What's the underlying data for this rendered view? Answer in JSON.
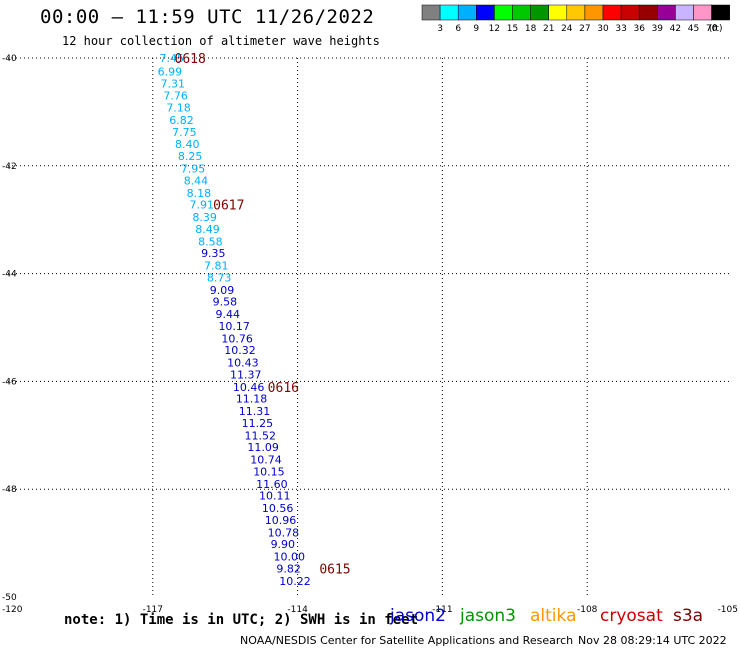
{
  "header": {
    "title": "00:00 — 11:59 UTC 11/26/2022",
    "subtitle": "12 hour collection of altimeter wave heights"
  },
  "colorbar": {
    "colors": [
      "#808080",
      "#00ffff",
      "#00b0ff",
      "#0000ff",
      "#00ff00",
      "#00c800",
      "#009600",
      "#ffff00",
      "#ffc800",
      "#ff9600",
      "#ff0000",
      "#c80000",
      "#960000",
      "#960096",
      "#c8b4ff",
      "#ff96c8",
      "#000000"
    ],
    "labels": [
      "3",
      "6",
      "9",
      "12",
      "15",
      "18",
      "21",
      "24",
      "27",
      "30",
      "33",
      "36",
      "39",
      "42",
      "45",
      "70",
      "(ft)"
    ]
  },
  "axes": {
    "y_ticks": [
      "-40",
      "-42",
      "-44",
      "-46",
      "-48",
      "-50"
    ],
    "x_ticks": [
      "-120",
      "-117",
      "-114",
      "-111",
      "-108",
      "-105"
    ],
    "lat_range": [
      -50,
      -40
    ],
    "lon_range": [
      -120,
      -105
    ]
  },
  "track": {
    "points": [
      {
        "v": "7.45",
        "lon": -116.86,
        "lat": -40.0,
        "c": "#00b0ff"
      },
      {
        "v": "6.99",
        "lon": -116.9,
        "lat": -40.25,
        "c": "#00b0ff"
      },
      {
        "v": "7.31",
        "lon": -116.84,
        "lat": -40.47,
        "c": "#00b0ff"
      },
      {
        "v": "7.76",
        "lon": -116.78,
        "lat": -40.7,
        "c": "#00b0ff"
      },
      {
        "v": "7.18",
        "lon": -116.72,
        "lat": -40.92,
        "c": "#00b0ff"
      },
      {
        "v": "6.82",
        "lon": -116.66,
        "lat": -41.15,
        "c": "#00b0ff"
      },
      {
        "v": "7.75",
        "lon": -116.6,
        "lat": -41.37,
        "c": "#00b0ff"
      },
      {
        "v": "8.40",
        "lon": -116.54,
        "lat": -41.6,
        "c": "#00b0ff"
      },
      {
        "v": "8.25",
        "lon": -116.48,
        "lat": -41.82,
        "c": "#00b0ff"
      },
      {
        "v": "7.95",
        "lon": -116.42,
        "lat": -42.05,
        "c": "#00b0ff"
      },
      {
        "v": "8.44",
        "lon": -116.36,
        "lat": -42.27,
        "c": "#00b0ff"
      },
      {
        "v": "8.18",
        "lon": -116.3,
        "lat": -42.5,
        "c": "#00b0ff"
      },
      {
        "v": "7.91",
        "lon": -116.24,
        "lat": -42.72,
        "c": "#00b0ff"
      },
      {
        "v": "8.39",
        "lon": -116.18,
        "lat": -42.95,
        "c": "#00b0ff"
      },
      {
        "v": "8.49",
        "lon": -116.12,
        "lat": -43.17,
        "c": "#00b0ff"
      },
      {
        "v": "8.58",
        "lon": -116.06,
        "lat": -43.4,
        "c": "#00b0ff"
      },
      {
        "v": "9.35",
        "lon": -116.0,
        "lat": -43.62,
        "c": "#0000c8"
      },
      {
        "v": "7.81",
        "lon": -115.94,
        "lat": -43.85,
        "c": "#00b0ff"
      },
      {
        "v": "8.73",
        "lon": -115.88,
        "lat": -44.07,
        "c": "#00b0ff"
      },
      {
        "v": "9.09",
        "lon": -115.82,
        "lat": -44.3,
        "c": "#0000c8"
      },
      {
        "v": "9.58",
        "lon": -115.76,
        "lat": -44.52,
        "c": "#0000c8"
      },
      {
        "v": "9.44",
        "lon": -115.7,
        "lat": -44.75,
        "c": "#0000c8"
      },
      {
        "v": "10.17",
        "lon": -115.64,
        "lat": -44.97,
        "c": "#0000c8"
      },
      {
        "v": "10.76",
        "lon": -115.58,
        "lat": -45.2,
        "c": "#0000c8"
      },
      {
        "v": "10.32",
        "lon": -115.52,
        "lat": -45.42,
        "c": "#0000c8"
      },
      {
        "v": "10.43",
        "lon": -115.46,
        "lat": -45.65,
        "c": "#0000c8"
      },
      {
        "v": "11.37",
        "lon": -115.4,
        "lat": -45.87,
        "c": "#0000c8"
      },
      {
        "v": "10.46",
        "lon": -115.34,
        "lat": -46.1,
        "c": "#0000c8"
      },
      {
        "v": "11.18",
        "lon": -115.28,
        "lat": -46.32,
        "c": "#0000c8"
      },
      {
        "v": "11.31",
        "lon": -115.22,
        "lat": -46.55,
        "c": "#0000c8"
      },
      {
        "v": "11.25",
        "lon": -115.16,
        "lat": -46.77,
        "c": "#0000c8"
      },
      {
        "v": "11.52",
        "lon": -115.1,
        "lat": -47.0,
        "c": "#0000c8"
      },
      {
        "v": "11.09",
        "lon": -115.04,
        "lat": -47.22,
        "c": "#0000c8"
      },
      {
        "v": "10.74",
        "lon": -114.98,
        "lat": -47.45,
        "c": "#0000c8"
      },
      {
        "v": "10.15",
        "lon": -114.92,
        "lat": -47.67,
        "c": "#0000c8"
      },
      {
        "v": "11.60",
        "lon": -114.86,
        "lat": -47.9,
        "c": "#0000c8"
      },
      {
        "v": "10.11",
        "lon": -114.8,
        "lat": -48.12,
        "c": "#0000c8"
      },
      {
        "v": "10.56",
        "lon": -114.74,
        "lat": -48.35,
        "c": "#0000c8"
      },
      {
        "v": "10.96",
        "lon": -114.68,
        "lat": -48.57,
        "c": "#0000c8"
      },
      {
        "v": "10.78",
        "lon": -114.62,
        "lat": -48.8,
        "c": "#0000c8"
      },
      {
        "v": "9.90",
        "lon": -114.56,
        "lat": -49.02,
        "c": "#0000c8"
      },
      {
        "v": "10.00",
        "lon": -114.5,
        "lat": -49.25,
        "c": "#0000c8"
      },
      {
        "v": "9.82",
        "lon": -114.44,
        "lat": -49.47,
        "c": "#0000c8"
      },
      {
        "v": "10.22",
        "lon": -114.38,
        "lat": -49.7,
        "c": "#0000c8"
      }
    ],
    "time_labels": [
      {
        "t": "0618",
        "lon": -116.55,
        "lat": -40.0
      },
      {
        "t": "0617",
        "lon": -115.75,
        "lat": -42.72
      },
      {
        "t": "0616",
        "lon": -114.62,
        "lat": -46.1
      },
      {
        "t": "0615",
        "lon": -113.55,
        "lat": -49.47
      }
    ],
    "time_label_color": "#800000"
  },
  "footer": {
    "note": "note: 1) Time is in UTC; 2) SWH is in feet",
    "credit": "NOAA/NESDIS Center for Satellite Applications and Research",
    "timestamp": "Nov 28 08:29:14 UTC 2022"
  },
  "legend": [
    {
      "name": "jason2",
      "color": "#0000c8"
    },
    {
      "name": "jason3",
      "color": "#009600"
    },
    {
      "name": "altika",
      "color": "#ff9600"
    },
    {
      "name": "cryosat",
      "color": "#c80000"
    },
    {
      "name": "s3a",
      "color": "#800000"
    }
  ]
}
